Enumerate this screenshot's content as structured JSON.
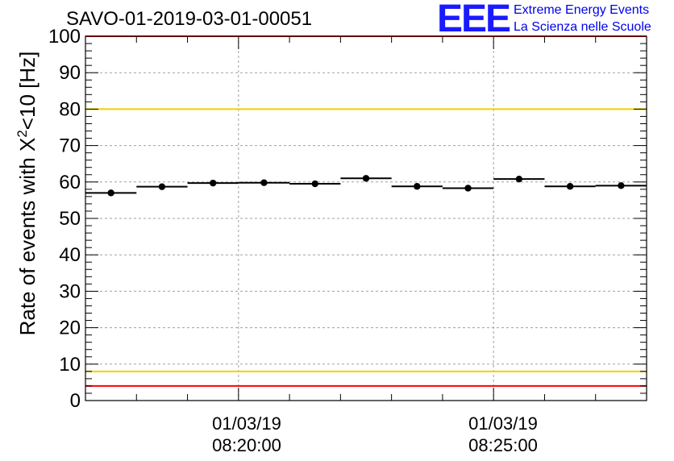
{
  "header": {
    "run_title": "SAVO-01-2019-03-01-00051",
    "logo_text": "EEE",
    "logo_line1": "Extreme Energy Events",
    "logo_line2": "La Scienza nelle Scuole"
  },
  "colors": {
    "red_line": "#ff0000",
    "yellow_line": "#f0d000",
    "logo": "#1a1aff",
    "grid": "#a0a0a0",
    "marker": "#000000"
  },
  "chart_data": {
    "type": "scatter",
    "title": "SAVO-01-2019-03-01-00051",
    "xlabel": "",
    "ylabel_prefix": "Rate of events with X",
    "ylabel_sup": "2",
    "ylabel_suffix": "<10 [Hz]",
    "ylim": [
      0,
      100
    ],
    "yticks": [
      0,
      10,
      20,
      30,
      40,
      50,
      60,
      70,
      80,
      90,
      100
    ],
    "x_unit": "minutes after 08:17:00",
    "xlim": [
      0,
      11
    ],
    "xtick_labels": [
      {
        "x": 3,
        "date": "01/03/19",
        "time": "08:20:00"
      },
      {
        "x": 8,
        "date": "01/03/19",
        "time": "08:25:00"
      }
    ],
    "grid": true,
    "points": [
      {
        "x": 0.5,
        "y": 57.0,
        "xerr": 0.5,
        "yerr": 0.5
      },
      {
        "x": 1.5,
        "y": 58.7,
        "xerr": 0.5,
        "yerr": 0.5
      },
      {
        "x": 2.5,
        "y": 59.7,
        "xerr": 0.5,
        "yerr": 0.5
      },
      {
        "x": 3.5,
        "y": 59.8,
        "xerr": 0.5,
        "yerr": 0.5
      },
      {
        "x": 4.5,
        "y": 59.5,
        "xerr": 0.5,
        "yerr": 0.5
      },
      {
        "x": 5.5,
        "y": 61.0,
        "xerr": 0.5,
        "yerr": 0.5
      },
      {
        "x": 6.5,
        "y": 58.8,
        "xerr": 0.5,
        "yerr": 0.5
      },
      {
        "x": 7.5,
        "y": 58.3,
        "xerr": 0.5,
        "yerr": 0.5
      },
      {
        "x": 8.5,
        "y": 60.8,
        "xerr": 0.5,
        "yerr": 0.5
      },
      {
        "x": 9.5,
        "y": 58.8,
        "xerr": 0.5,
        "yerr": 0.5
      },
      {
        "x": 10.5,
        "y": 59.0,
        "xerr": 0.5,
        "yerr": 0.5
      }
    ],
    "reference_lines": [
      {
        "name": "upper-red-line",
        "y": 100,
        "color": "#ff0000"
      },
      {
        "name": "upper-yellow-line",
        "y": 80,
        "color": "#f0d000"
      },
      {
        "name": "lower-yellow-line",
        "y": 8,
        "color": "#f0d000"
      },
      {
        "name": "lower-red-line",
        "y": 4,
        "color": "#ff0000"
      }
    ]
  }
}
